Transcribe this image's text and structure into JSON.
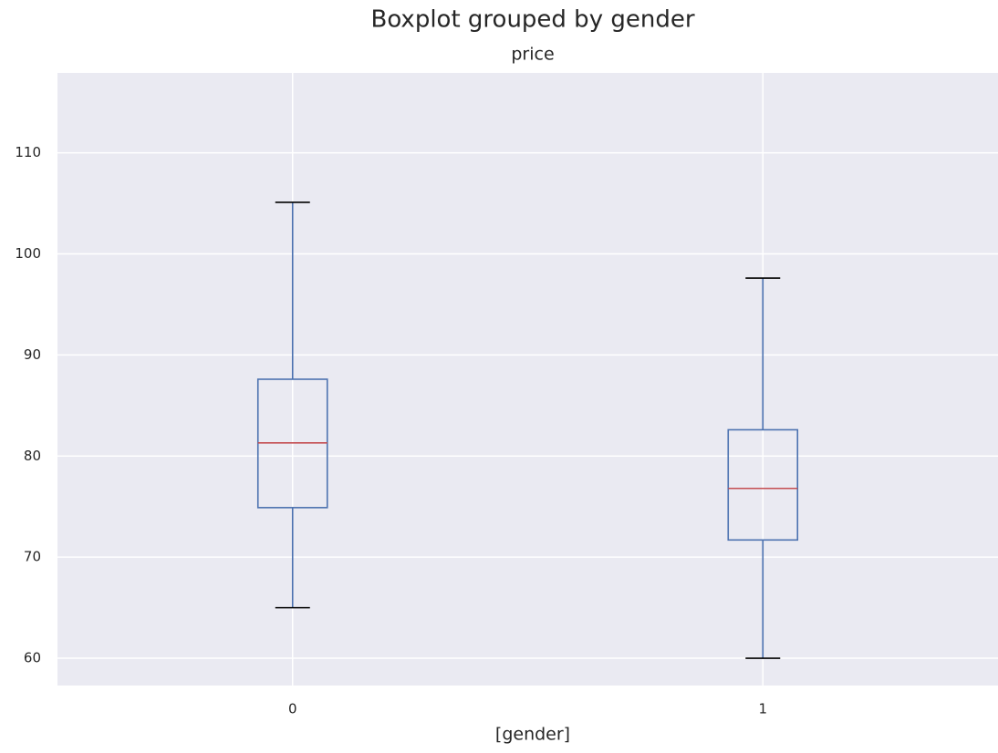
{
  "chart_data": {
    "type": "box",
    "title": "Boxplot grouped by gender",
    "subtitle": "price",
    "x_label": "[gender]",
    "categories": [
      "0",
      "1"
    ],
    "boxes": [
      {
        "whisker_low": 65.0,
        "q1": 74.9,
        "median": 81.3,
        "q3": 87.6,
        "whisker_high": 105.1
      },
      {
        "whisker_low": 60.0,
        "q1": 71.7,
        "median": 76.8,
        "q3": 82.6,
        "whisker_high": 97.6
      }
    ],
    "box_color": "#4c72b0",
    "median_color": "#c44e52",
    "cap_color": "#000000",
    "ylim": [
      57.3,
      117.9
    ],
    "yticks": [
      60,
      70,
      80,
      90,
      100,
      110
    ],
    "grid": true
  }
}
